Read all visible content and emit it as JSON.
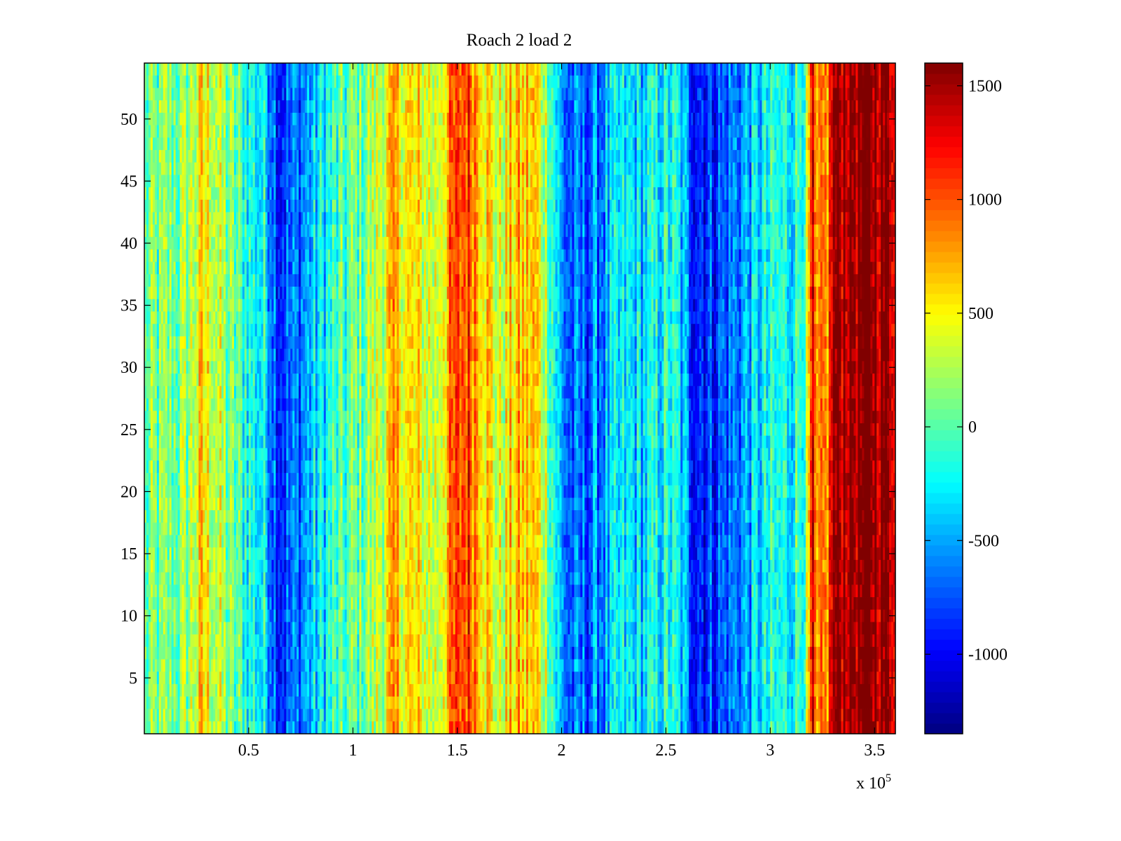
{
  "chart_data": {
    "type": "heatmap",
    "title": "Roach 2 load 2",
    "xlabel": "",
    "ylabel": "",
    "x_multiplier_label": "x 10",
    "x_multiplier_exponent": "5",
    "xlim": [
      0,
      3.6
    ],
    "ylim": [
      0.5,
      54.5
    ],
    "rows": 54,
    "columns": 360,
    "x_ticks": [
      {
        "value": 0.5,
        "label": "0.5"
      },
      {
        "value": 1,
        "label": "1"
      },
      {
        "value": 1.5,
        "label": "1.5"
      },
      {
        "value": 2,
        "label": "2"
      },
      {
        "value": 2.5,
        "label": "2.5"
      },
      {
        "value": 3,
        "label": "3"
      },
      {
        "value": 3.5,
        "label": "3.5"
      }
    ],
    "y_ticks": [
      {
        "value": 5,
        "label": "5"
      },
      {
        "value": 10,
        "label": "10"
      },
      {
        "value": 15,
        "label": "15"
      },
      {
        "value": 20,
        "label": "20"
      },
      {
        "value": 25,
        "label": "25"
      },
      {
        "value": 30,
        "label": "30"
      },
      {
        "value": 35,
        "label": "35"
      },
      {
        "value": 40,
        "label": "40"
      },
      {
        "value": 45,
        "label": "45"
      },
      {
        "value": 50,
        "label": "50"
      }
    ],
    "colorbar": {
      "colormap": "jet",
      "range": [
        -1350,
        1600
      ],
      "ticks": [
        {
          "value": -1000,
          "label": "-1000"
        },
        {
          "value": -500,
          "label": "-500"
        },
        {
          "value": 0,
          "label": "0"
        },
        {
          "value": 500,
          "label": "500"
        },
        {
          "value": 1000,
          "label": "1000"
        },
        {
          "value": 1500,
          "label": "1500"
        }
      ]
    },
    "column_profile": [
      [
        0.0,
        0
      ],
      [
        0.1,
        80
      ],
      [
        0.2,
        150
      ],
      [
        0.28,
        550
      ],
      [
        0.33,
        400
      ],
      [
        0.4,
        80
      ],
      [
        0.5,
        -150
      ],
      [
        0.58,
        -300
      ],
      [
        0.65,
        -800
      ],
      [
        0.72,
        -700
      ],
      [
        0.8,
        -450
      ],
      [
        0.9,
        -150
      ],
      [
        1.0,
        0
      ],
      [
        1.1,
        250
      ],
      [
        1.2,
        650
      ],
      [
        1.3,
        450
      ],
      [
        1.4,
        350
      ],
      [
        1.48,
        900
      ],
      [
        1.55,
        1100
      ],
      [
        1.6,
        850
      ],
      [
        1.7,
        300
      ],
      [
        1.78,
        650
      ],
      [
        1.87,
        600
      ],
      [
        1.93,
        250
      ],
      [
        2.0,
        -550
      ],
      [
        2.05,
        -750
      ],
      [
        2.12,
        -700
      ],
      [
        2.2,
        -550
      ],
      [
        2.3,
        -350
      ],
      [
        2.4,
        -350
      ],
      [
        2.5,
        -200
      ],
      [
        2.56,
        -300
      ],
      [
        2.62,
        -750
      ],
      [
        2.7,
        -850
      ],
      [
        2.8,
        -700
      ],
      [
        2.9,
        -450
      ],
      [
        3.0,
        -250
      ],
      [
        3.1,
        -200
      ],
      [
        3.18,
        150
      ],
      [
        3.2,
        1300
      ],
      [
        3.22,
        550
      ],
      [
        3.25,
        700
      ],
      [
        3.28,
        900
      ],
      [
        3.3,
        1500
      ],
      [
        3.4,
        1600
      ],
      [
        3.5,
        1600
      ],
      [
        3.6,
        1500
      ]
    ],
    "noise_amplitude": 380,
    "colors": {
      "axis": "#000000",
      "background": "#ffffff"
    }
  }
}
